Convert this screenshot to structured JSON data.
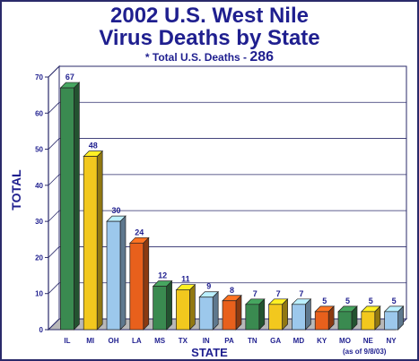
{
  "title_line1": "2002 U.S. West Nile",
  "title_line2": "Virus Deaths by State",
  "subtitle_prefix": "* Total U.S. Deaths - ",
  "subtitle_total": "286",
  "note": "(as of 9/8/03)",
  "chart_data": {
    "type": "bar",
    "categories": [
      "IL",
      "MI",
      "OH",
      "LA",
      "MS",
      "TX",
      "IN",
      "PA",
      "TN",
      "GA",
      "MD",
      "KY",
      "MO",
      "NE",
      "NY"
    ],
    "values": [
      67,
      48,
      30,
      24,
      12,
      11,
      9,
      8,
      7,
      7,
      7,
      5,
      5,
      5,
      5
    ],
    "colors": [
      "#3a8a50",
      "#f2c81e",
      "#9cc8ec",
      "#e8601c",
      "#3a8a50",
      "#f2c81e",
      "#9cc8ec",
      "#e8601c",
      "#3a8a50",
      "#f2c81e",
      "#9cc8ec",
      "#e8601c",
      "#3a8a50",
      "#f2c81e",
      "#9cc8ec"
    ],
    "xlabel": "STATE",
    "ylabel": "TOTAL",
    "ylim": [
      0,
      70
    ],
    "yticks": [
      0,
      10,
      20,
      30,
      40,
      50,
      60,
      70
    ],
    "grid": true,
    "title": "2002 U.S. West Nile Virus Deaths by State"
  }
}
